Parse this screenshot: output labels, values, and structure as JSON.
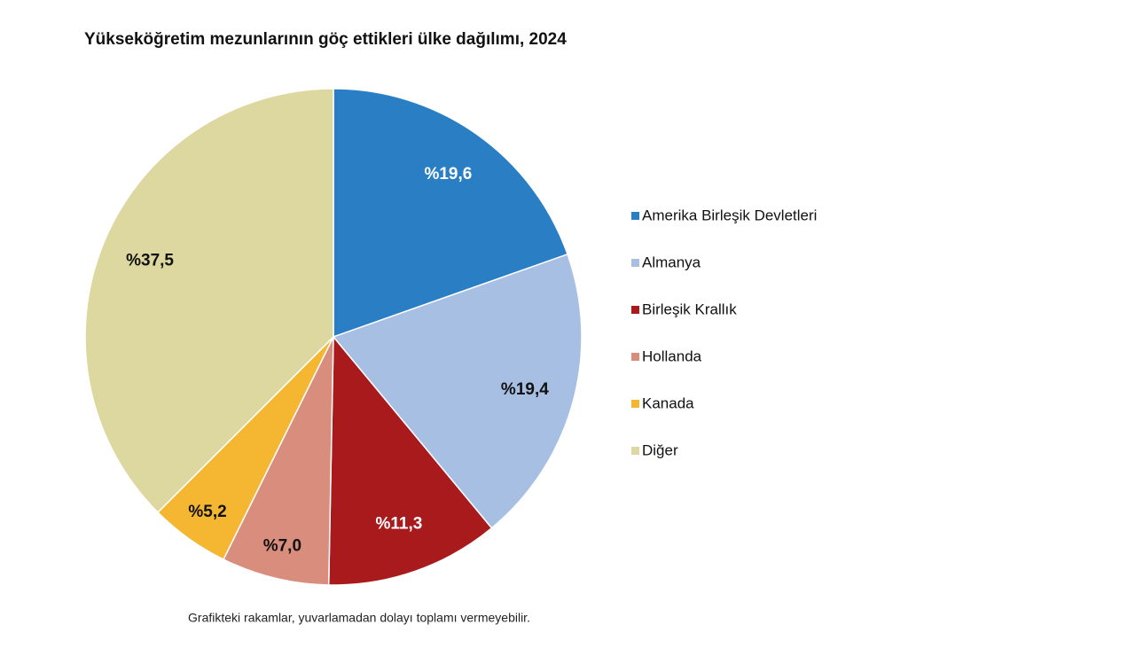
{
  "chart_data": {
    "type": "pie",
    "title": "Yükseköğretim mezunlarının göç ettikleri ülke dağılımı, 2024",
    "categories": [
      "Amerika Birleşik Devletleri",
      "Almanya",
      "Birleşik Krallık",
      "Hollanda",
      "Kanada",
      "Diğer"
    ],
    "values": [
      19.6,
      19.4,
      11.3,
      7.0,
      5.2,
      37.5
    ],
    "value_labels": [
      "%19,6",
      "%19,4",
      "%11,3",
      "%7,0",
      "%5,2",
      "%37,5"
    ],
    "colors": [
      "#2a7ec4",
      "#a8bfe4",
      "#a81a1c",
      "#d98d7c",
      "#f5b731",
      "#dcd8a0"
    ],
    "legend": "right",
    "note": "Grafikteki rakamlar, yuvarlamadan dolayı toplamı vermeyebilir."
  }
}
